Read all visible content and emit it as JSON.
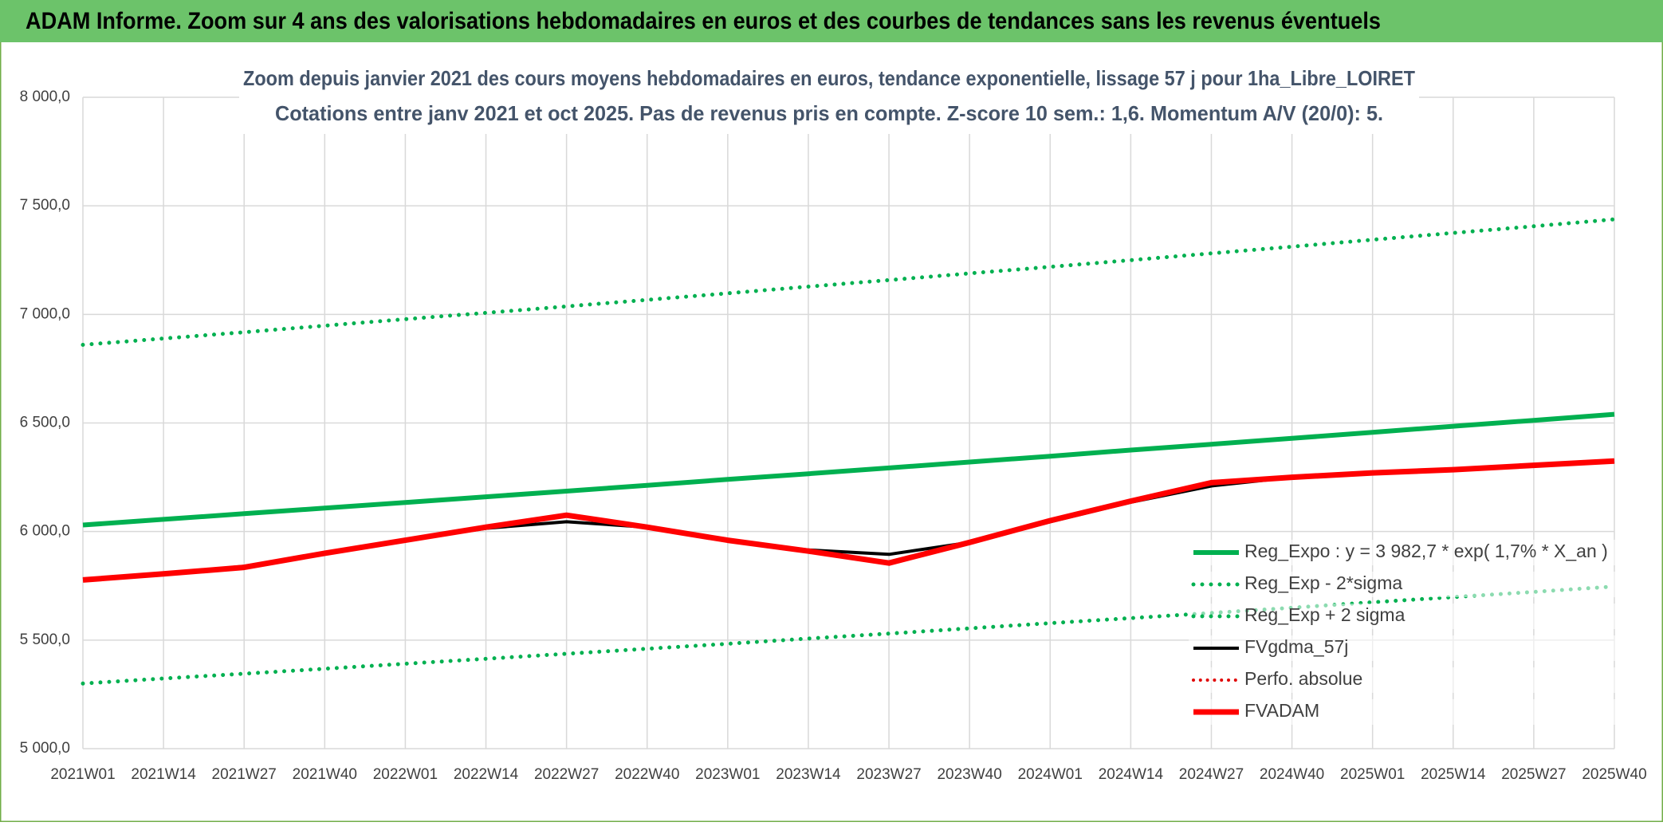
{
  "header": {
    "title": "ADAM Informe. Zoom sur 4 ans des valorisations hebdomadaires en euros et des courbes de tendances sans les revenus éventuels"
  },
  "chart_data": {
    "type": "line",
    "title": "Zoom depuis janvier 2021 des cours moyens hebdomadaires en euros, tendance exponentielle, lissage 57 j pour 1ha_Libre_LOIRET",
    "subtitle": "Cotations entre janv 2021 et oct 2025. Pas de revenus pris en compte. Z-score 10 sem.: 1,6. Momentum A/V (20/0): 5.",
    "categories": [
      "2021W01",
      "2021W14",
      "2021W27",
      "2021W40",
      "2022W01",
      "2022W14",
      "2022W27",
      "2022W40",
      "2023W01",
      "2023W14",
      "2023W27",
      "2023W40",
      "2024W01",
      "2024W14",
      "2024W27",
      "2024W40",
      "2025W01",
      "2025W14",
      "2025W27",
      "2025W40"
    ],
    "ylim": [
      5000,
      8000
    ],
    "yticks": [
      {
        "value": 5000,
        "label": "5 000,0"
      },
      {
        "value": 5500,
        "label": "5 500,0"
      },
      {
        "value": 6000,
        "label": "6 000,0"
      },
      {
        "value": 6500,
        "label": "6 500,0"
      },
      {
        "value": 7000,
        "label": "7 000,0"
      },
      {
        "value": 7500,
        "label": "7 500,0"
      },
      {
        "value": 8000,
        "label": "8 000,0"
      }
    ],
    "grid": true,
    "series": [
      {
        "name": "Reg_Expo : y = 3 982,7 * exp( 1,7% *  X_an )",
        "color": "#00b050",
        "style": "solid",
        "width": 6,
        "values": [
          6030,
          6056,
          6082,
          6108,
          6134,
          6160,
          6186,
          6213,
          6240,
          6266,
          6293,
          6320,
          6347,
          6375,
          6402,
          6429,
          6457,
          6485,
          6512,
          6540
        ]
      },
      {
        "name": "Reg_Exp - 2*sigma",
        "color": "#00b050",
        "style": "dotted",
        "width": 5,
        "values": [
          5300,
          5323,
          5345,
          5368,
          5391,
          5414,
          5437,
          5460,
          5483,
          5507,
          5530,
          5554,
          5578,
          5601,
          5625,
          5649,
          5674,
          5698,
          5722,
          5747
        ]
      },
      {
        "name": "Reg_Exp + 2 sigma",
        "color": "#00b050",
        "style": "dotted",
        "width": 5,
        "values": [
          6860,
          6889,
          6918,
          6948,
          6978,
          7007,
          7037,
          7067,
          7097,
          7128,
          7158,
          7189,
          7219,
          7250,
          7281,
          7312,
          7344,
          7375,
          7406,
          7438
        ]
      },
      {
        "name": "FVgdma_57j",
        "color": "#000000",
        "style": "solid",
        "width": 4,
        "values": [
          5780,
          5805,
          5840,
          5900,
          5960,
          6015,
          6045,
          6020,
          5960,
          5915,
          5895,
          5950,
          6045,
          6135,
          6210,
          6250,
          6270,
          6285,
          6305,
          6325
        ]
      },
      {
        "name": "Perfo. absolue",
        "color": "#e00000",
        "style": "dotted",
        "width": 4,
        "values": [
          null,
          null,
          null,
          null,
          null,
          null,
          null,
          null,
          null,
          null,
          null,
          null,
          null,
          null,
          null,
          null,
          null,
          null,
          null,
          null
        ]
      },
      {
        "name": "FVADAM",
        "color": "#ff0000",
        "style": "solid",
        "width": 7,
        "values": [
          5777,
          5805,
          5835,
          5900,
          5960,
          6020,
          6075,
          6020,
          5960,
          5910,
          5855,
          5950,
          6050,
          6140,
          6225,
          6250,
          6270,
          6285,
          6305,
          6325
        ]
      }
    ]
  }
}
